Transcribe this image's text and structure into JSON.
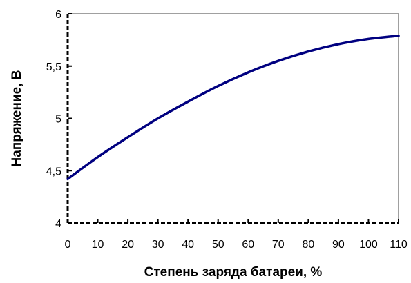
{
  "chart_data": {
    "type": "line",
    "title": "",
    "xlabel": "Степень заряда батареи, %",
    "ylabel": "Напряжение, В",
    "xlim": [
      0,
      110
    ],
    "ylim": [
      4,
      6
    ],
    "x_ticks": [
      0,
      10,
      20,
      30,
      40,
      50,
      60,
      70,
      80,
      90,
      100,
      110
    ],
    "x_tick_labels": [
      "0",
      "10",
      "20",
      "30",
      "40",
      "50",
      "60",
      "70",
      "80",
      "90",
      "100",
      "110"
    ],
    "y_ticks": [
      4,
      4.5,
      5,
      5.5,
      6
    ],
    "y_tick_labels": [
      "4",
      "4,5",
      "5",
      "5,5",
      "6"
    ],
    "grid": false,
    "series": [
      {
        "color": "#000080",
        "x": [
          0,
          10,
          20,
          30,
          40,
          50,
          60,
          70,
          80,
          90,
          100,
          110
        ],
        "y": [
          4.42,
          4.63,
          4.82,
          5.0,
          5.16,
          5.31,
          5.44,
          5.55,
          5.64,
          5.71,
          5.76,
          5.79
        ]
      }
    ]
  }
}
